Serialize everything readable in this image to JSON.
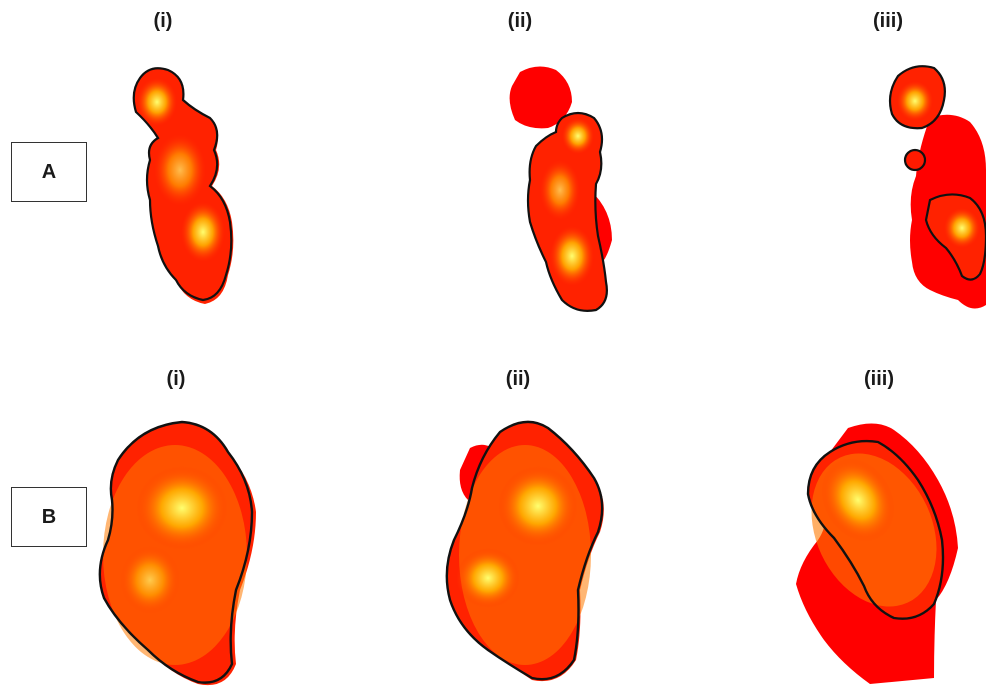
{
  "figure": {
    "row_a": {
      "label": "A",
      "columns": [
        "(i)",
        "(ii)",
        "(iii)"
      ]
    },
    "row_b": {
      "label": "B",
      "columns": [
        "(i)",
        "(ii)",
        "(iii)"
      ]
    }
  },
  "colors": {
    "outer": "#ff0000",
    "core": "#ffff66",
    "contour": "#111111"
  }
}
